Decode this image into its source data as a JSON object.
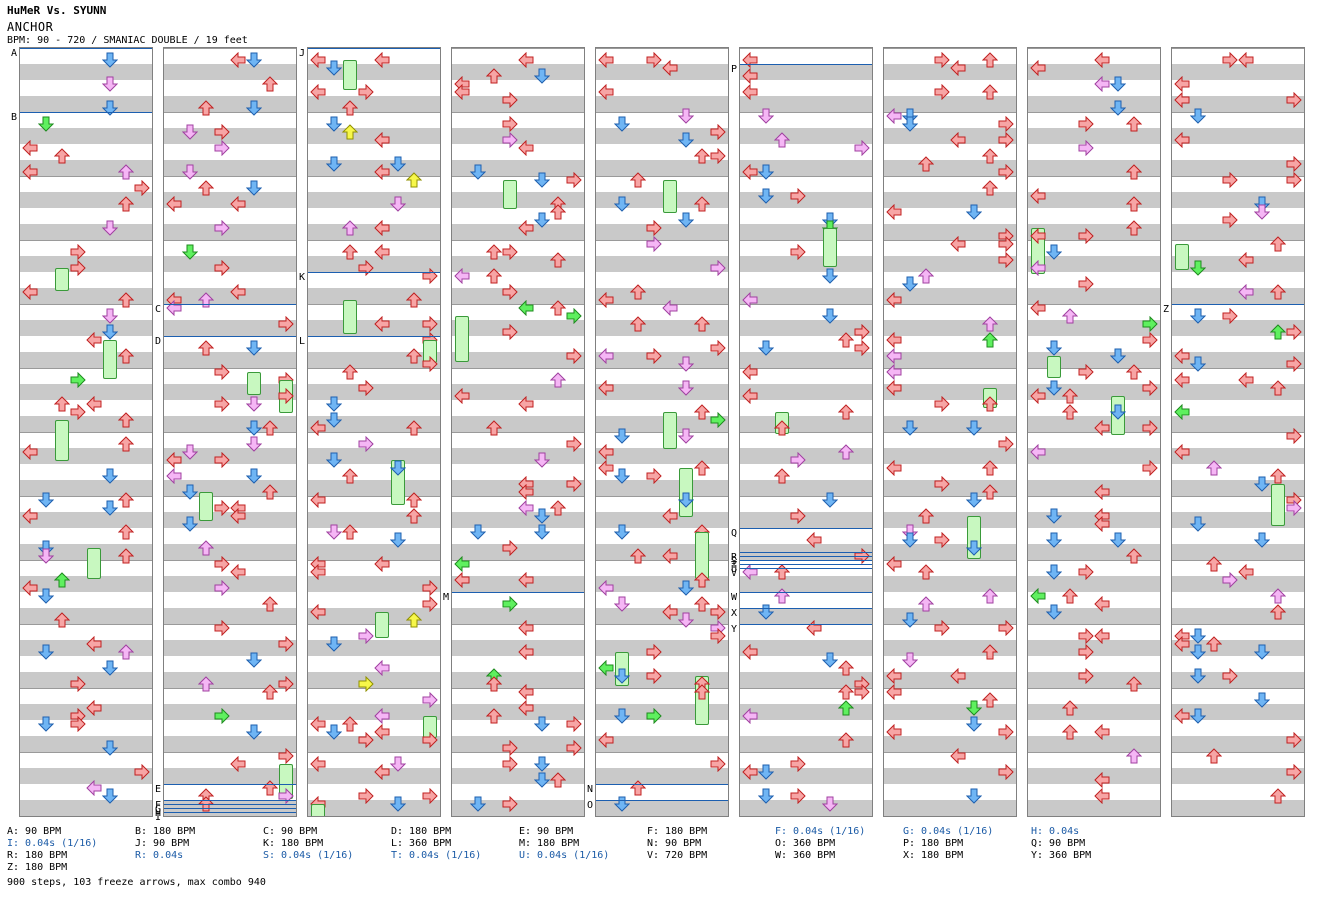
{
  "header": {
    "title": "HuMeR Vs. SYUNN",
    "song": "ANCHOR",
    "info": "BPM: 90 - 720 / SMANIAC DOUBLE / 19 feet"
  },
  "colors": {
    "left": "#f7a5a5",
    "down": "#6fb5f4",
    "up": "#f7a5a5",
    "right": "#f7a5a5",
    "pink": "#f5b6f5",
    "yellow": "#f7f74a",
    "green": "#5ff05f",
    "freeze": "#c8f8c0",
    "bpm_line": "#1c5fb0",
    "band": "#c9c9c9"
  },
  "markers": [
    {
      "label": "A",
      "col": 0,
      "measure_pos": 0.0
    },
    {
      "label": "B",
      "col": 0,
      "measure_pos": 1.0
    },
    {
      "label": "C",
      "col": 1,
      "measure_pos": 4.0
    },
    {
      "label": "D",
      "col": 1,
      "measure_pos": 4.5
    },
    {
      "label": "E",
      "col": 1,
      "measure_pos": 11.5
    },
    {
      "label": "F",
      "col": 1,
      "measure_pos": 11.75
    },
    {
      "label": "G",
      "col": 1,
      "measure_pos": 11.82
    },
    {
      "label": "H",
      "col": 1,
      "measure_pos": 11.88
    },
    {
      "label": "I",
      "col": 1,
      "measure_pos": 11.94
    },
    {
      "label": "J",
      "col": 2,
      "measure_pos": 0.0
    },
    {
      "label": "K",
      "col": 2,
      "measure_pos": 3.5
    },
    {
      "label": "L",
      "col": 2,
      "measure_pos": 4.5
    },
    {
      "label": "M",
      "col": 3,
      "measure_pos": 8.5
    },
    {
      "label": "N",
      "col": 4,
      "measure_pos": 11.5
    },
    {
      "label": "O",
      "col": 4,
      "measure_pos": 11.75
    },
    {
      "label": "P",
      "col": 5,
      "measure_pos": 0.25
    },
    {
      "label": "Q",
      "col": 5,
      "measure_pos": 7.5
    },
    {
      "label": "R",
      "col": 5,
      "measure_pos": 7.88
    },
    {
      "label": "S",
      "col": 5,
      "measure_pos": 7.94
    },
    {
      "label": "T",
      "col": 5,
      "measure_pos": 8.0
    },
    {
      "label": "U",
      "col": 5,
      "measure_pos": 8.06
    },
    {
      "label": "V",
      "col": 5,
      "measure_pos": 8.12
    },
    {
      "label": "W",
      "col": 5,
      "measure_pos": 8.5
    },
    {
      "label": "X",
      "col": 5,
      "measure_pos": 8.75
    },
    {
      "label": "Y",
      "col": 5,
      "measure_pos": 9.0
    },
    {
      "label": "Z",
      "col": 8,
      "measure_pos": 4.0
    }
  ],
  "legend": [
    {
      "text": "A: 90 BPM",
      "hl": false
    },
    {
      "text": "I: 0.04s (1/16)",
      "hl": true
    },
    {
      "text": "R: 180 BPM",
      "hl": false
    },
    {
      "text": "Z: 180 BPM",
      "hl": false
    },
    {
      "text": "B: 180 BPM",
      "hl": false
    },
    {
      "text": "J: 90 BPM",
      "hl": false
    },
    {
      "text": "R: 0.04s",
      "hl": true
    },
    {
      "text": "",
      "hl": false
    },
    {
      "text": "C: 90 BPM",
      "hl": false
    },
    {
      "text": "K: 180 BPM",
      "hl": false
    },
    {
      "text": "S: 0.04s (1/16)",
      "hl": true
    },
    {
      "text": "",
      "hl": false
    },
    {
      "text": "D: 180 BPM",
      "hl": false
    },
    {
      "text": "L: 360 BPM",
      "hl": false
    },
    {
      "text": "T: 0.04s (1/16)",
      "hl": true
    },
    {
      "text": "",
      "hl": false
    },
    {
      "text": "E: 90 BPM",
      "hl": false
    },
    {
      "text": "M: 180 BPM",
      "hl": false
    },
    {
      "text": "U: 0.04s (1/16)",
      "hl": true
    },
    {
      "text": "",
      "hl": false
    },
    {
      "text": "F: 180 BPM",
      "hl": false
    },
    {
      "text": "N: 90 BPM",
      "hl": false
    },
    {
      "text": "V: 720 BPM",
      "hl": false
    },
    {
      "text": "",
      "hl": false
    },
    {
      "text": "F: 0.04s (1/16)",
      "hl": true
    },
    {
      "text": "O: 360 BPM",
      "hl": false
    },
    {
      "text": "W: 360 BPM",
      "hl": false
    },
    {
      "text": "",
      "hl": false
    },
    {
      "text": "G: 0.04s (1/16)",
      "hl": true
    },
    {
      "text": "P: 180 BPM",
      "hl": false
    },
    {
      "text": "X: 180 BPM",
      "hl": false
    },
    {
      "text": "",
      "hl": false
    },
    {
      "text": "H: 0.04s",
      "hl": true
    },
    {
      "text": "Q: 90 BPM",
      "hl": false
    },
    {
      "text": "Y: 360 BPM",
      "hl": false
    },
    {
      "text": "",
      "hl": false
    }
  ],
  "summary": "900 steps, 103 freeze arrows, max combo 940"
}
